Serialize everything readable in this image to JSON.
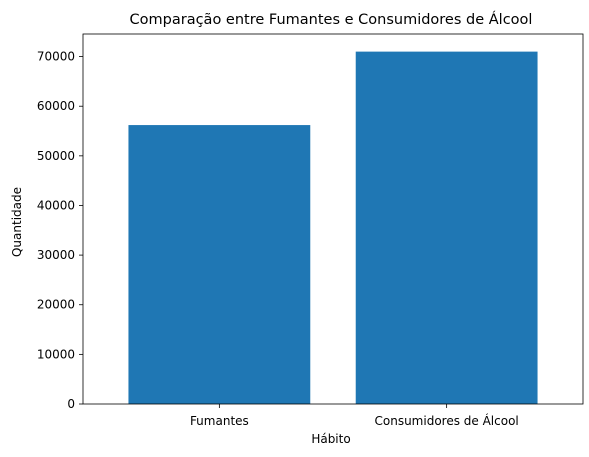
{
  "chart_data": {
    "type": "bar",
    "title": "Comparação entre Fumantes e Consumidores de Álcool",
    "xlabel": "Hábito",
    "ylabel": "Quantidade",
    "categories": [
      "Fumantes",
      "Consumidores de Álcool"
    ],
    "values": [
      56200,
      71000
    ],
    "ylim": [
      0,
      74550
    ],
    "yticks": [
      0,
      10000,
      20000,
      30000,
      40000,
      50000,
      60000,
      70000
    ],
    "ytick_labels": [
      "0",
      "10000",
      "20000",
      "30000",
      "40000",
      "50000",
      "60000",
      "70000"
    ],
    "bar_color": "#1f77b4",
    "grid": false,
    "legend": false
  }
}
